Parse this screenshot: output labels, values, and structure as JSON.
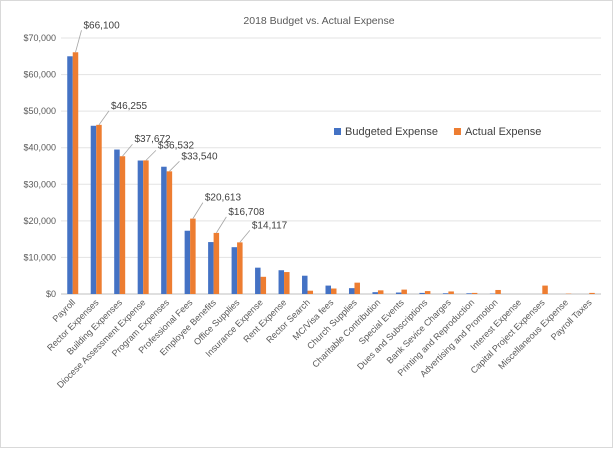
{
  "chart_data": {
    "type": "bar",
    "title": "2018 Budget vs. Actual Expense",
    "xlabel": "",
    "ylabel": "",
    "ylim": [
      0,
      70000
    ],
    "yticks": [
      "$0",
      "$10,000",
      "$20,000",
      "$30,000",
      "$40,000",
      "$50,000",
      "$60,000",
      "$70,000"
    ],
    "grid": true,
    "legend_position": "right",
    "categories": [
      "Payroll",
      "Rector Expenses",
      "Building Expenses",
      "Diocese Assessment Expense",
      "Program Expenses",
      "Professional Fees",
      "Employee Benefits",
      "Office Supplies",
      "Insurance Expense",
      "Rent Expense",
      "Rector Search",
      "MC/Visa fees",
      "Church Supplies",
      "Charitable Contribution",
      "Special Events",
      "Dues and Subscriptions",
      "Bank Sevice Charges",
      "Printing and Reproduction",
      "Advertising and Promotion",
      "Interest Expense",
      "Capital Project Expenses",
      "Miscellaneous Expense",
      "Payroll Taxes"
    ],
    "series": [
      {
        "name": "Budgeted Expense",
        "color": "#4472C4",
        "values": [
          65000,
          46000,
          39500,
          36500,
          34800,
          17300,
          14200,
          12800,
          7200,
          6500,
          5000,
          2300,
          1600,
          500,
          400,
          300,
          200,
          200,
          100,
          0,
          0,
          0,
          0
        ]
      },
      {
        "name": "Actual Expense",
        "color": "#ED7D31",
        "values": [
          66100,
          46255,
          37672,
          36532,
          33540,
          20613,
          16708,
          14117,
          4700,
          6000,
          900,
          1500,
          3100,
          1000,
          1200,
          800,
          700,
          300,
          1100,
          0,
          2300,
          100,
          300
        ]
      }
    ],
    "data_labels": [
      {
        "index": 0,
        "text": "$66,100"
      },
      {
        "index": 1,
        "text": "$46,255"
      },
      {
        "index": 2,
        "text": "$37,672"
      },
      {
        "index": 3,
        "text": "$36,532"
      },
      {
        "index": 4,
        "text": "$33,540"
      },
      {
        "index": 5,
        "text": "$20,613"
      },
      {
        "index": 6,
        "text": "$16,708"
      },
      {
        "index": 7,
        "text": "$14,117"
      }
    ]
  }
}
